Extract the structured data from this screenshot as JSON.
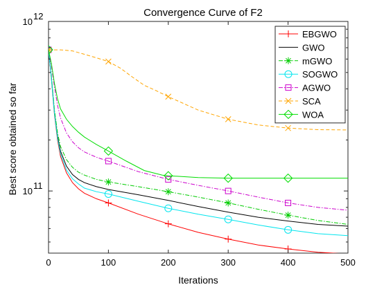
{
  "chart_data": {
    "type": "line",
    "title": "Convergence Curve of F2",
    "xlabel": "Iterations",
    "ylabel": "Best score obtained so far",
    "xlim": [
      0,
      500
    ],
    "ylim": [
      43000000000,
      1000000000000
    ],
    "yscale": "log",
    "grid": false,
    "legend_position": "top-right",
    "x_ticks": [
      0,
      100,
      200,
      300,
      400,
      500
    ],
    "y_ticks": [
      {
        "value": 100000000000,
        "base": "10",
        "exp": "11"
      },
      {
        "value": 1000000000000,
        "base": "10",
        "exp": "12"
      }
    ],
    "series": [
      {
        "name": "EBGWO",
        "color": "#ff0000",
        "dash": "",
        "marker": "plus",
        "x": [
          0,
          5,
          10,
          15,
          20,
          30,
          40,
          50,
          60,
          80,
          100,
          150,
          200,
          250,
          300,
          350,
          400,
          450,
          500
        ],
        "y": [
          680000000000,
          450000000000,
          280000000000,
          200000000000,
          160000000000,
          128000000000,
          112000000000,
          103000000000,
          97000000000,
          90000000000,
          85000000000,
          73000000000,
          64000000000,
          57000000000,
          52000000000,
          48000000000,
          45500000000,
          43500000000,
          42500000000
        ]
      },
      {
        "name": "GWO",
        "color": "#000000",
        "dash": "",
        "marker": "none",
        "x": [
          0,
          5,
          10,
          15,
          20,
          30,
          40,
          50,
          60,
          80,
          100,
          150,
          200,
          250,
          300,
          350,
          400,
          450,
          500
        ],
        "y": [
          680000000000,
          460000000000,
          290000000000,
          210000000000,
          172000000000,
          140000000000,
          125000000000,
          117000000000,
          112000000000,
          106000000000,
          102000000000,
          95000000000,
          88000000000,
          81000000000,
          75000000000,
          70000000000,
          66500000000,
          63500000000,
          62000000000
        ]
      },
      {
        "name": "mGWO",
        "color": "#00cc00",
        "dash": "6,2,1.5,2",
        "marker": "asterisk",
        "x": [
          0,
          5,
          10,
          15,
          20,
          30,
          40,
          50,
          60,
          80,
          100,
          150,
          200,
          250,
          300,
          350,
          400,
          450,
          500
        ],
        "y": [
          680000000000,
          470000000000,
          300000000000,
          220000000000,
          183000000000,
          153000000000,
          138000000000,
          129000000000,
          124000000000,
          117000000000,
          113000000000,
          106000000000,
          99000000000,
          92000000000,
          85000000000,
          78000000000,
          72000000000,
          67000000000,
          63500000000
        ]
      },
      {
        "name": "SOGWO",
        "color": "#00e5ee",
        "dash": "",
        "marker": "circle",
        "x": [
          0,
          5,
          10,
          15,
          20,
          30,
          40,
          50,
          60,
          80,
          100,
          150,
          200,
          250,
          300,
          350,
          400,
          450,
          500
        ],
        "y": [
          680000000000,
          455000000000,
          285000000000,
          205000000000,
          166000000000,
          133000000000,
          118000000000,
          110000000000,
          104000000000,
          99000000000,
          96000000000,
          87000000000,
          79000000000,
          73000000000,
          68000000000,
          63000000000,
          59000000000,
          56000000000,
          54500000000
        ]
      },
      {
        "name": "AGWO",
        "color": "#cc00cc",
        "dash": "6,2,1.5,2",
        "marker": "square",
        "x": [
          0,
          5,
          10,
          15,
          20,
          30,
          40,
          50,
          60,
          80,
          100,
          150,
          200,
          250,
          300,
          350,
          400,
          450,
          500
        ],
        "y": [
          680000000000,
          540000000000,
          410000000000,
          320000000000,
          270000000000,
          220000000000,
          195000000000,
          180000000000,
          170000000000,
          158000000000,
          150000000000,
          130000000000,
          117000000000,
          108000000000,
          100000000000,
          92000000000,
          85000000000,
          80000000000,
          77000000000
        ]
      },
      {
        "name": "SCA",
        "color": "#ffa500",
        "dash": "5,3",
        "marker": "x",
        "x": [
          0,
          20,
          40,
          60,
          80,
          100,
          120,
          140,
          160,
          180,
          200,
          250,
          300,
          350,
          400,
          450,
          500
        ],
        "y": [
          680000000000,
          680000000000,
          670000000000,
          640000000000,
          610000000000,
          580000000000,
          530000000000,
          470000000000,
          420000000000,
          390000000000,
          360000000000,
          300000000000,
          265000000000,
          245000000000,
          235000000000,
          230000000000,
          229000000000
        ]
      },
      {
        "name": "WOA",
        "color": "#00dd00",
        "dash": "",
        "marker": "diamond",
        "x": [
          0,
          5,
          10,
          15,
          20,
          30,
          40,
          50,
          60,
          80,
          100,
          130,
          160,
          190,
          200,
          250,
          300,
          350,
          400,
          450,
          500
        ],
        "y": [
          680000000000,
          560000000000,
          430000000000,
          350000000000,
          305000000000,
          265000000000,
          240000000000,
          222000000000,
          208000000000,
          188000000000,
          172000000000,
          150000000000,
          132000000000,
          124000000000,
          123000000000,
          120000000000,
          119000000000,
          119000000000,
          119000000000,
          119000000000,
          119000000000
        ]
      }
    ],
    "marker_x": [
      0,
      100,
      200,
      300,
      400
    ]
  }
}
